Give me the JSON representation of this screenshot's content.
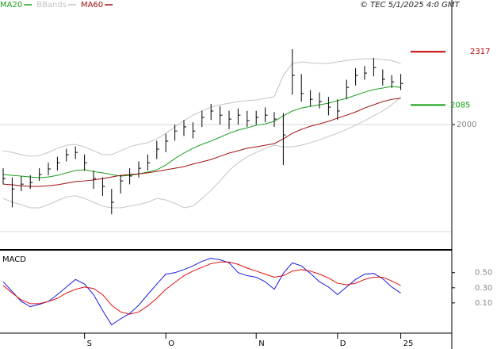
{
  "chart_data": [
    {
      "type": "ohlc",
      "note": "© TEC 5/1/2025 4:0 GMT",
      "categories": [
        null,
        null,
        null,
        null,
        null,
        null,
        null,
        null,
        null,
        "S",
        null,
        null,
        null,
        null,
        null,
        null,
        null,
        null,
        "O",
        null,
        null,
        null,
        null,
        null,
        null,
        null,
        null,
        null,
        "N",
        null,
        null,
        null,
        null,
        null,
        null,
        null,
        null,
        "D",
        null,
        null,
        null,
        null,
        null,
        null,
        "25"
      ],
      "high": [
        1810,
        1770,
        1775,
        1780,
        1810,
        1835,
        1860,
        1895,
        1905,
        1870,
        1800,
        1770,
        1720,
        1780,
        1810,
        1840,
        1870,
        1930,
        1960,
        2000,
        2020,
        2010,
        2060,
        2090,
        2080,
        2060,
        2070,
        2060,
        2060,
        2075,
        2055,
        2050,
        2328,
        2220,
        2150,
        2140,
        2120,
        2110,
        2195,
        2245,
        2255,
        2290,
        2240,
        2215,
        2220
      ],
      "low": [
        1740,
        1640,
        1710,
        1720,
        1755,
        1780,
        1800,
        1840,
        1850,
        1800,
        1720,
        1690,
        1610,
        1700,
        1740,
        1770,
        1800,
        1850,
        1880,
        1930,
        1950,
        1940,
        1990,
        2020,
        2000,
        1980,
        2000,
        1990,
        2000,
        2010,
        1990,
        1824,
        2130,
        2100,
        2080,
        2070,
        2040,
        2020,
        2110,
        2170,
        2195,
        2210,
        2170,
        2160,
        2150
      ],
      "close": [
        1765,
        1720,
        1741,
        1748,
        1783,
        1807,
        1834,
        1869,
        1879,
        1834,
        1765,
        1731,
        1662,
        1755,
        1776,
        1810,
        1834,
        1893,
        1928,
        1972,
        1990,
        1972,
        2031,
        2059,
        2041,
        2024,
        2041,
        2017,
        2031,
        2041,
        2024,
        1955,
        2214,
        2135,
        2110,
        2100,
        2076,
        2059,
        2162,
        2214,
        2224,
        2248,
        2197,
        2186,
        2179
      ],
      "color": "#000000",
      "series": [
        {
          "name": "MA20",
          "color": "#1a9e1a",
          "values": [
            1783,
            1779,
            1776,
            1772,
            1769,
            1772,
            1779,
            1790,
            1800,
            1803,
            1796,
            1790,
            1783,
            1776,
            1779,
            1786,
            1793,
            1803,
            1824,
            1852,
            1876,
            1897,
            1914,
            1928,
            1945,
            1962,
            1976,
            1986,
            1997,
            2003,
            2014,
            2038,
            2059,
            2072,
            2079,
            2086,
            2093,
            2104,
            2114,
            2128,
            2141,
            2152,
            2159,
            2166,
            2162
          ]
        },
        {
          "name": "BBands",
          "color": "#c4c4c4",
          "upper": [
            1886,
            1879,
            1869,
            1862,
            1865,
            1879,
            1897,
            1910,
            1914,
            1903,
            1886,
            1869,
            1869,
            1886,
            1903,
            1914,
            1921,
            1938,
            1962,
            1990,
            2017,
            2041,
            2059,
            2076,
            2086,
            2093,
            2100,
            2104,
            2107,
            2114,
            2121,
            2214,
            2266,
            2273,
            2269,
            2266,
            2266,
            2273,
            2279,
            2283,
            2286,
            2286,
            2283,
            2279,
            2266
          ],
          "lower": [
            1679,
            1662,
            1652,
            1638,
            1638,
            1652,
            1669,
            1686,
            1690,
            1679,
            1662,
            1645,
            1638,
            1638,
            1645,
            1652,
            1662,
            1679,
            1672,
            1658,
            1638,
            1645,
            1679,
            1714,
            1755,
            1800,
            1834,
            1859,
            1879,
            1897,
            1910,
            1903,
            1903,
            1910,
            1921,
            1934,
            1948,
            1962,
            1979,
            1997,
            2017,
            2038,
            2059,
            2086,
            2121
          ]
        },
        {
          "name": "MA60",
          "color": "#a01010",
          "values": [
            1741,
            1738,
            1734,
            1731,
            1731,
            1734,
            1738,
            1745,
            1752,
            1755,
            1759,
            1765,
            1772,
            1779,
            1783,
            1786,
            1790,
            1796,
            1803,
            1810,
            1817,
            1828,
            1838,
            1848,
            1862,
            1876,
            1886,
            1897,
            1903,
            1910,
            1917,
            1938,
            1962,
            1979,
            1993,
            2003,
            2014,
            2028,
            2041,
            2055,
            2072,
            2086,
            2100,
            2110,
            2114
          ]
        }
      ],
      "levels": [
        {
          "value": 2317,
          "color": "#c00000"
        },
        {
          "value": 2085,
          "color": "#10a010"
        }
      ],
      "ylim": [
        1455,
        2542
      ],
      "yticks": [
        2000
      ],
      "grid": true
    },
    {
      "type": "line",
      "title": "MACD",
      "series": [
        {
          "color": "#1a1ae0",
          "values": [
            0.38,
            0.25,
            0.12,
            0.05,
            0.08,
            0.12,
            0.21,
            0.31,
            0.41,
            0.35,
            0.21,
            0.0,
            -0.19,
            -0.11,
            -0.04,
            0.07,
            0.21,
            0.35,
            0.48,
            0.5,
            0.54,
            0.59,
            0.65,
            0.69,
            0.67,
            0.63,
            0.5,
            0.46,
            0.44,
            0.38,
            0.28,
            0.49,
            0.63,
            0.59,
            0.49,
            0.38,
            0.31,
            0.21,
            0.31,
            0.41,
            0.48,
            0.49,
            0.42,
            0.31,
            0.23
          ]
        },
        {
          "color": "#e01010",
          "values": [
            0.33,
            0.23,
            0.14,
            0.09,
            0.09,
            0.12,
            0.16,
            0.23,
            0.28,
            0.31,
            0.29,
            0.21,
            0.07,
            -0.02,
            -0.05,
            -0.02,
            0.06,
            0.16,
            0.28,
            0.37,
            0.46,
            0.52,
            0.57,
            0.62,
            0.64,
            0.64,
            0.61,
            0.56,
            0.52,
            0.48,
            0.44,
            0.46,
            0.52,
            0.54,
            0.52,
            0.48,
            0.43,
            0.36,
            0.34,
            0.36,
            0.41,
            0.44,
            0.44,
            0.39,
            0.33
          ]
        }
      ],
      "ylim": [
        -0.3,
        0.77
      ],
      "yticks": [
        {
          "value": 0.5,
          "label": "0.50"
        },
        {
          "value": 0.3,
          "label": "0.30"
        },
        {
          "value": 0.1,
          "label": "0.10"
        }
      ]
    }
  ]
}
